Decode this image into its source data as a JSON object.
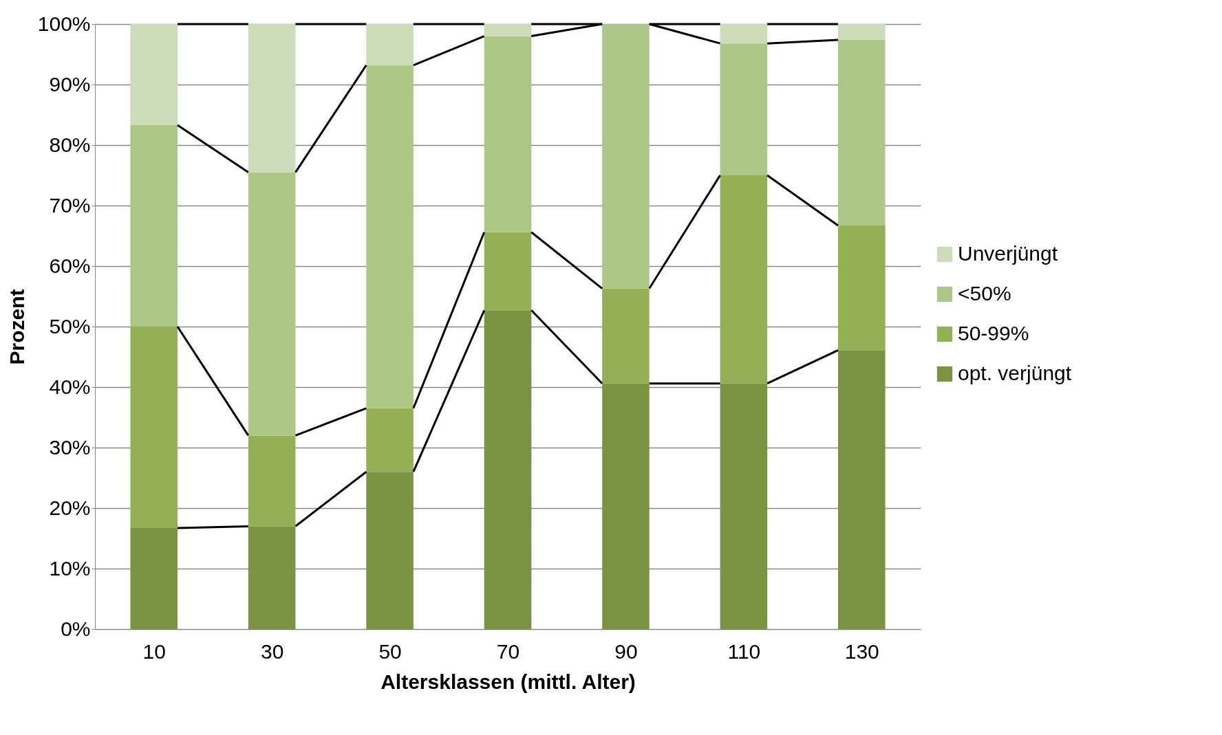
{
  "chart_data": {
    "type": "bar",
    "stacked": true,
    "xlabel": "Altersklassen (mittl. Alter)",
    "ylabel": "Prozent",
    "categories": [
      "10",
      "30",
      "50",
      "70",
      "90",
      "110",
      "130"
    ],
    "series": [
      {
        "name": "opt. verjüngt",
        "color": "#7a9444",
        "values": [
          16.7,
          17,
          26,
          52.7,
          40.6,
          40.6,
          46.1
        ]
      },
      {
        "name": "50-99%",
        "color": "#93b057",
        "values": [
          33.3,
          15,
          10.5,
          12.9,
          15.7,
          34.4,
          20.6
        ]
      },
      {
        "name": "<50%",
        "color": "#adc788",
        "values": [
          33.3,
          43.5,
          56.7,
          32.4,
          43.7,
          21.8,
          30.7
        ]
      },
      {
        "name": "Unverjüngt",
        "color": "#cddcb9",
        "values": [
          16.7,
          24.5,
          6.8,
          2,
          null,
          3.2,
          2.6
        ]
      }
    ],
    "ylim": [
      0,
      100
    ],
    "yticks": [
      {
        "value": 0,
        "label": "0%"
      },
      {
        "value": 10,
        "label": "10%"
      },
      {
        "value": 20,
        "label": "20%"
      },
      {
        "value": 30,
        "label": "30%"
      },
      {
        "value": 40,
        "label": "40%"
      },
      {
        "value": 50,
        "label": "50%"
      },
      {
        "value": 60,
        "label": "60%"
      },
      {
        "value": 70,
        "label": "70%"
      },
      {
        "value": 80,
        "label": "80%"
      },
      {
        "value": 90,
        "label": "90%"
      },
      {
        "value": 100,
        "label": "100%"
      }
    ],
    "grid": "y",
    "legend": "right"
  }
}
